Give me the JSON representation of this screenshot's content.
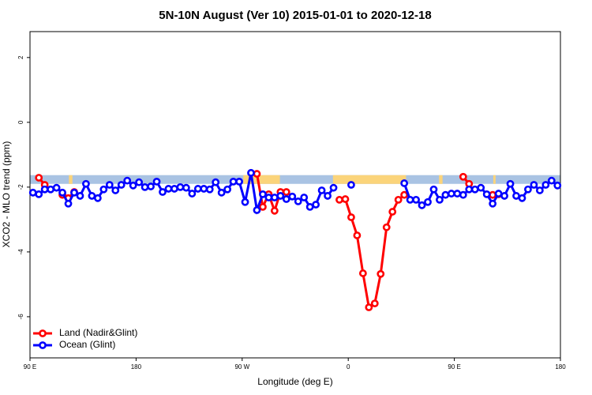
{
  "chart_data": {
    "type": "line",
    "title": "5N-10N August (Ver 10)   2015-01-01 to 2020-12-18",
    "x_label": "Longitude (deg E)",
    "y_label": "XCO2 - MLO trend (ppm)",
    "xlim": [
      90,
      540
    ],
    "ylim": [
      -7.27,
      2.8
    ],
    "xticks": [
      {
        "value": 90,
        "label": "90 E"
      },
      180,
      {
        "value": 270,
        "label": "90 W"
      },
      {
        "value": 360,
        "label": "0"
      },
      {
        "value": 450,
        "label": "90 E"
      },
      {
        "value": 540,
        "label": "180"
      }
    ],
    "yticks": [
      2,
      0,
      -2,
      -4,
      -6
    ],
    "legend": "bottom-left",
    "surface_band": {
      "ylim": [
        -1.9,
        -1.63
      ],
      "ocean_color": "#a9c3e3",
      "land_color": "#fbd47a",
      "land_segments": [
        [
          123,
          126
        ],
        [
          271,
          302
        ],
        [
          347,
          409
        ],
        [
          437,
          440
        ],
        [
          483,
          485
        ]
      ]
    },
    "x": [
      92.5,
      97.5,
      102.5,
      107.5,
      112.5,
      117.5,
      122.5,
      127.5,
      132.5,
      137.5,
      142.5,
      147.5,
      152.5,
      157.5,
      162.5,
      167.5,
      172.5,
      177.5,
      182.5,
      187.5,
      192.5,
      197.5,
      202.5,
      207.5,
      212.5,
      217.5,
      222.5,
      227.5,
      232.5,
      237.5,
      242.5,
      247.5,
      252.5,
      257.5,
      262.5,
      267.5,
      272.5,
      277.5,
      282.5,
      287.5,
      292.5,
      297.5,
      302.5,
      307.5,
      312.5,
      317.5,
      322.5,
      327.5,
      332.5,
      337.5,
      342.5,
      347.5,
      352.5,
      357.5,
      362.5,
      367.5,
      372.5,
      377.5,
      382.5,
      387.5,
      392.5,
      397.5,
      402.5,
      407.5,
      412.5,
      417.5,
      422.5,
      427.5,
      432.5,
      437.5,
      442.5,
      447.5,
      452.5,
      457.5,
      462.5,
      467.5,
      472.5,
      477.5,
      482.5,
      487.5,
      492.5,
      497.5,
      502.5,
      507.5,
      512.5,
      517.5,
      522.5,
      527.5,
      532.5,
      537.5
    ],
    "series": [
      {
        "name": "Land (Nadir&Glint)",
        "color": "#ff0000",
        "values": [
          null,
          -1.71,
          -1.93,
          null,
          null,
          -2.24,
          -2.34,
          -2.15,
          null,
          null,
          null,
          null,
          null,
          null,
          null,
          null,
          null,
          null,
          null,
          null,
          null,
          null,
          null,
          null,
          null,
          null,
          null,
          null,
          null,
          null,
          null,
          null,
          null,
          null,
          null,
          null,
          null,
          null,
          -1.59,
          -2.61,
          -2.22,
          -2.73,
          -2.15,
          -2.15,
          null,
          null,
          null,
          null,
          null,
          null,
          null,
          null,
          -2.39,
          -2.37,
          -2.93,
          -3.49,
          -4.66,
          -5.71,
          -5.59,
          -4.68,
          -3.24,
          -2.76,
          -2.39,
          -2.24,
          null,
          null,
          null,
          null,
          null,
          null,
          null,
          null,
          null,
          -1.68,
          -1.9,
          null,
          null,
          null,
          -2.24,
          -2.22,
          null,
          null,
          null,
          null,
          null,
          null,
          null,
          null,
          null,
          null
        ]
      },
      {
        "name": "Ocean (Glint)",
        "color": "#0000ff",
        "values": [
          -2.17,
          -2.22,
          -2.07,
          -2.07,
          -2.02,
          -2.17,
          -2.51,
          -2.17,
          -2.27,
          -1.9,
          -2.27,
          -2.34,
          -2.07,
          -1.93,
          -2.1,
          -1.93,
          -1.8,
          -1.95,
          -1.85,
          -2.0,
          -1.98,
          -1.83,
          -2.15,
          -2.05,
          -2.05,
          -2.0,
          -2.02,
          -2.2,
          -2.05,
          -2.05,
          -2.07,
          -1.85,
          -2.17,
          -2.07,
          -1.83,
          -1.83,
          -2.46,
          -1.56,
          -2.71,
          -2.22,
          -2.32,
          -2.32,
          -2.27,
          -2.37,
          -2.29,
          -2.44,
          -2.32,
          -2.61,
          -2.54,
          -2.1,
          -2.27,
          -2.02,
          null,
          null,
          -1.93,
          null,
          null,
          null,
          null,
          null,
          null,
          null,
          null,
          -1.88,
          -2.39,
          -2.39,
          -2.56,
          -2.46,
          -2.07,
          -2.39,
          -2.24,
          -2.2,
          -2.2,
          -2.24,
          -2.07,
          -2.07,
          -2.02,
          -2.22,
          -2.51,
          -2.2,
          -2.27,
          -1.9,
          -2.27,
          -2.34,
          -2.07,
          -1.93,
          -2.1,
          -1.93,
          -1.8,
          -1.95
        ]
      }
    ]
  }
}
